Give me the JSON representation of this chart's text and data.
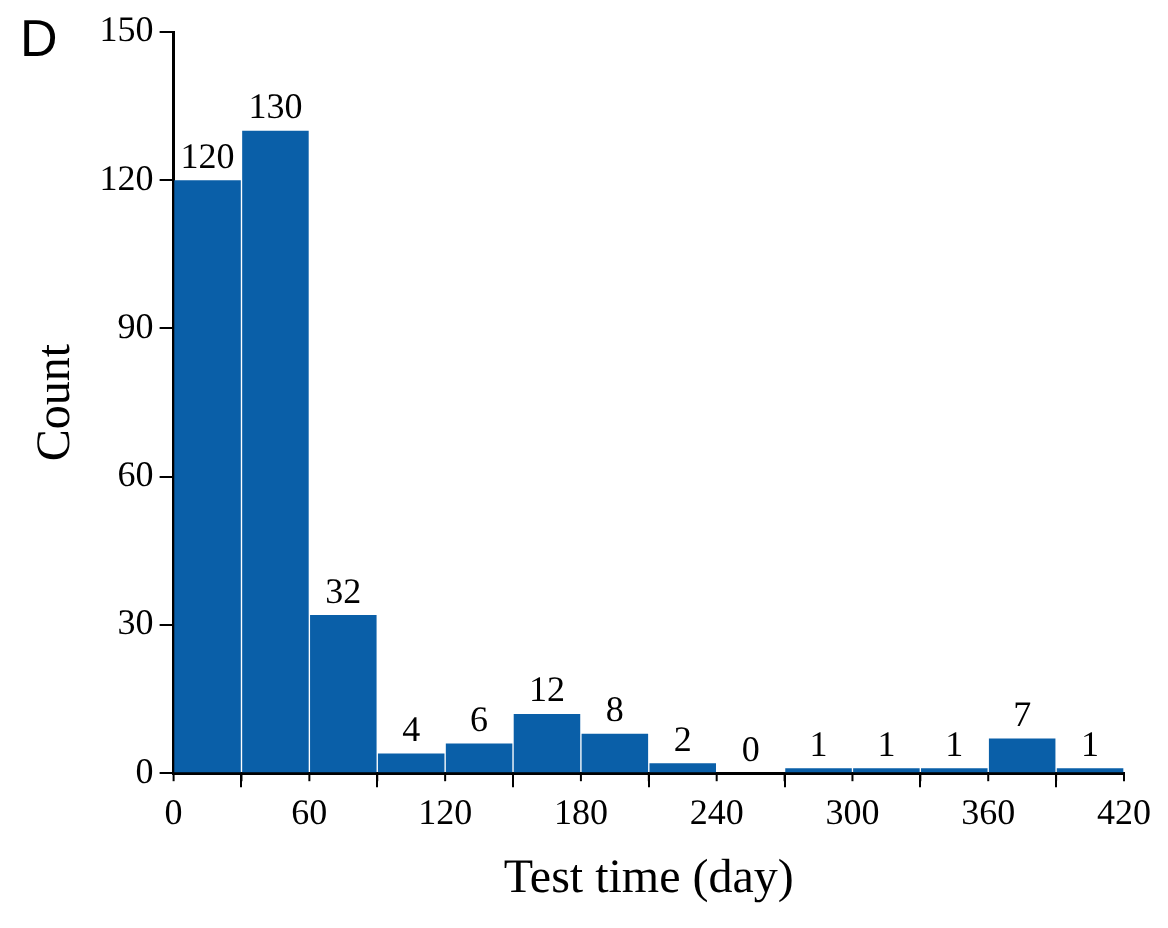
{
  "chart_data": {
    "type": "histogram",
    "xlabel": "Test time (day)",
    "ylabel": "Count",
    "bins": [
      0,
      30,
      60,
      90,
      120,
      150,
      180,
      210,
      240,
      270,
      300,
      330,
      360,
      390,
      420
    ],
    "values": [
      120,
      130,
      32,
      4,
      6,
      12,
      8,
      2,
      0,
      1,
      1,
      1,
      7,
      1
    ],
    "color": "#0a5fa8",
    "data_labels": true,
    "grid": false,
    "legend": false,
    "xlim": [
      0,
      420
    ],
    "xticks": [
      0,
      60,
      120,
      180,
      240,
      300,
      360,
      420
    ],
    "ylim": [
      0,
      150
    ],
    "yticks": [
      0,
      30,
      60,
      90,
      120,
      150
    ],
    "annotations": [
      "D"
    ]
  }
}
